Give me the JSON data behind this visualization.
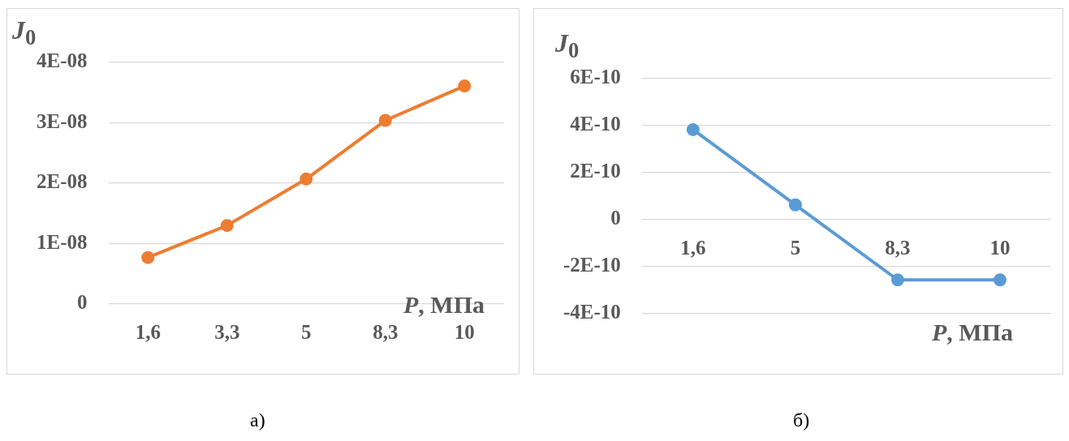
{
  "chart_data": [
    {
      "type": "line",
      "xlabel": "P, МПа",
      "ylabel": "J$_{0}$",
      "annotations": [
        "а)"
      ],
      "categories": [
        "1,6",
        "3,3",
        "5",
        "8,3",
        "10"
      ],
      "series": [
        {
          "color": "#ed7d31",
          "values": [
            7.7e-09,
            1.3e-08,
            2.07e-08,
            3.04e-08,
            3.61e-08
          ]
        }
      ],
      "ylim": [
        0,
        4e-08
      ],
      "yticks": [
        0,
        {
          "value": 1e-08,
          "label": "1E-08"
        },
        {
          "value": 2e-08,
          "label": "2E-08"
        },
        {
          "value": 3e-08,
          "label": "3E-08"
        },
        {
          "value": 4e-08,
          "label": "4E-08"
        }
      ],
      "grid": "y",
      "legend": false,
      "marker": "circle"
    },
    {
      "type": "line",
      "xlabel": "P, МПа",
      "ylabel": "J$_{0}$",
      "annotations": [
        "б)"
      ],
      "categories": [
        "1,6",
        "5",
        "8,3",
        "10"
      ],
      "series": [
        {
          "color": "#5b9bd5",
          "values": [
            3.83e-10,
            6.3e-11,
            -2.56e-10,
            -2.56e-10
          ]
        }
      ],
      "ylim": [
        -4e-10,
        6e-10
      ],
      "yticks": [
        {
          "value": -4e-10,
          "label": "-4E-10"
        },
        {
          "value": -2e-10,
          "label": "-2E-10"
        },
        0,
        {
          "value": 2e-10,
          "label": "2E-10"
        },
        {
          "value": 4e-10,
          "label": "4E-10"
        },
        {
          "value": 6e-10,
          "label": "6E-10"
        }
      ],
      "grid": "y",
      "legend": false,
      "marker": "circle"
    }
  ]
}
